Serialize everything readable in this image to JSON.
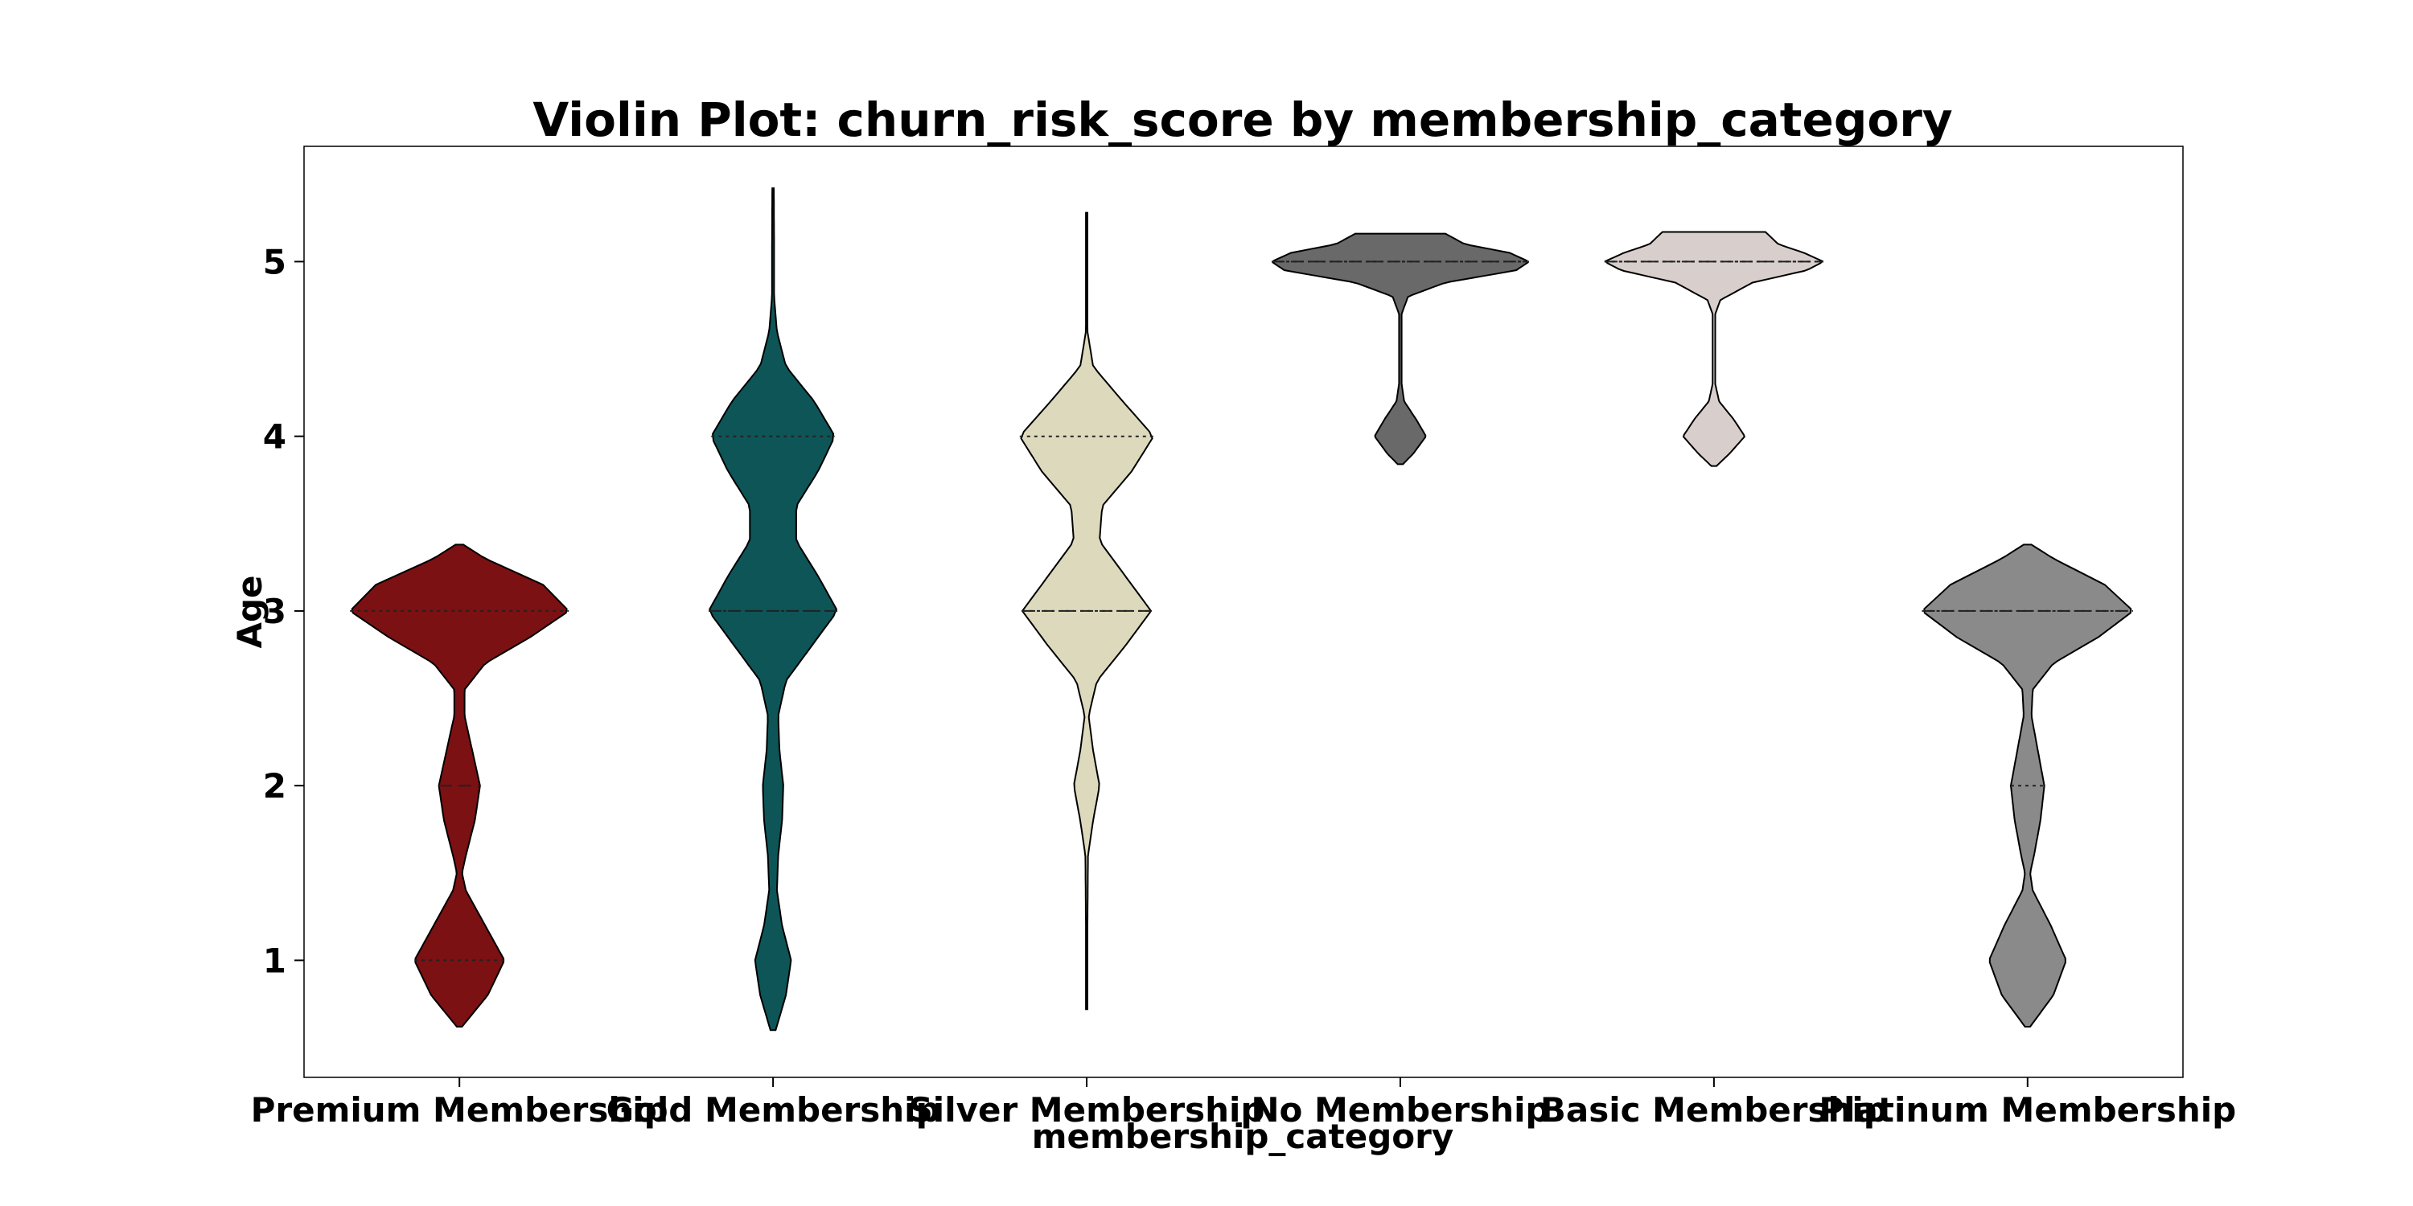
{
  "chart_data": {
    "type": "violin",
    "title": "Violin Plot: churn_risk_score by membership_category",
    "xlabel": "membership_category",
    "ylabel": "Age",
    "ylim": [
      0.33,
      5.66
    ],
    "yticks": [
      1,
      2,
      3,
      4,
      5
    ],
    "grid": false,
    "legend": "none",
    "inner": "quartile",
    "categories": [
      "Premium Membership",
      "Gold Membership",
      "Silver Membership",
      "No Membership",
      "Basic Membership",
      "Platinum Membership"
    ],
    "series": [
      {
        "category": "Premium Membership",
        "color": "#7b1113",
        "range": [
          0.62,
          3.38
        ],
        "quartiles": [
          1,
          2,
          3
        ],
        "density": [
          [
            0.62,
            0.02
          ],
          [
            0.8,
            0.22
          ],
          [
            1.0,
            0.35
          ],
          [
            1.2,
            0.2
          ],
          [
            1.4,
            0.05
          ],
          [
            1.5,
            0.02
          ],
          [
            1.6,
            0.05
          ],
          [
            1.8,
            0.12
          ],
          [
            2.0,
            0.16
          ],
          [
            2.2,
            0.1
          ],
          [
            2.4,
            0.04
          ],
          [
            2.55,
            0.04
          ],
          [
            2.7,
            0.2
          ],
          [
            2.85,
            0.55
          ],
          [
            3.0,
            0.85
          ],
          [
            3.15,
            0.65
          ],
          [
            3.3,
            0.2
          ],
          [
            3.38,
            0.03
          ]
        ]
      },
      {
        "category": "Gold Membership",
        "color": "#0e5558",
        "range": [
          0.6,
          5.42
        ],
        "quartiles": [
          3,
          3,
          4
        ],
        "density": [
          [
            0.6,
            0.02
          ],
          [
            0.8,
            0.1
          ],
          [
            1.0,
            0.14
          ],
          [
            1.2,
            0.07
          ],
          [
            1.4,
            0.03
          ],
          [
            1.6,
            0.04
          ],
          [
            1.8,
            0.07
          ],
          [
            2.0,
            0.08
          ],
          [
            2.2,
            0.05
          ],
          [
            2.4,
            0.04
          ],
          [
            2.6,
            0.1
          ],
          [
            2.8,
            0.3
          ],
          [
            3.0,
            0.5
          ],
          [
            3.2,
            0.35
          ],
          [
            3.4,
            0.18
          ],
          [
            3.6,
            0.18
          ],
          [
            3.8,
            0.35
          ],
          [
            4.0,
            0.48
          ],
          [
            4.2,
            0.32
          ],
          [
            4.4,
            0.1
          ],
          [
            4.6,
            0.03
          ],
          [
            4.8,
            0.008
          ],
          [
            5.1,
            0.008
          ],
          [
            5.42,
            0.006
          ]
        ]
      },
      {
        "category": "Silver Membership",
        "color": "#ddd9bc",
        "range": [
          0.72,
          5.28
        ],
        "quartiles": [
          3,
          3,
          4
        ],
        "density": [
          [
            0.72,
            0.006
          ],
          [
            1.2,
            0.006
          ],
          [
            1.6,
            0.01
          ],
          [
            1.8,
            0.05
          ],
          [
            2.0,
            0.1
          ],
          [
            2.2,
            0.05
          ],
          [
            2.4,
            0.015
          ],
          [
            2.6,
            0.08
          ],
          [
            2.8,
            0.3
          ],
          [
            3.0,
            0.5
          ],
          [
            3.2,
            0.3
          ],
          [
            3.4,
            0.1
          ],
          [
            3.6,
            0.12
          ],
          [
            3.8,
            0.35
          ],
          [
            4.0,
            0.52
          ],
          [
            4.2,
            0.28
          ],
          [
            4.4,
            0.05
          ],
          [
            4.6,
            0.006
          ],
          [
            5.28,
            0.006
          ]
        ]
      },
      {
        "category": "No Membership",
        "color": "#696969",
        "range": [
          3.84,
          5.16
        ],
        "quartiles": [
          5,
          5,
          5
        ],
        "density": [
          [
            3.84,
            0.02
          ],
          [
            3.9,
            0.1
          ],
          [
            4.0,
            0.2
          ],
          [
            4.1,
            0.12
          ],
          [
            4.2,
            0.03
          ],
          [
            4.3,
            0.01
          ],
          [
            4.7,
            0.01
          ],
          [
            4.8,
            0.06
          ],
          [
            4.88,
            0.35
          ],
          [
            4.95,
            0.9
          ],
          [
            5.0,
            1.0
          ],
          [
            5.05,
            0.85
          ],
          [
            5.1,
            0.5
          ],
          [
            5.16,
            0.35
          ]
        ]
      },
      {
        "category": "Basic Membership",
        "color": "#d8cfcd",
        "range": [
          3.83,
          5.17
        ],
        "quartiles": [
          5,
          5,
          5
        ],
        "density": [
          [
            3.83,
            0.02
          ],
          [
            3.9,
            0.12
          ],
          [
            4.0,
            0.24
          ],
          [
            4.1,
            0.15
          ],
          [
            4.2,
            0.04
          ],
          [
            4.3,
            0.01
          ],
          [
            4.7,
            0.01
          ],
          [
            4.78,
            0.05
          ],
          [
            4.88,
            0.3
          ],
          [
            4.95,
            0.72
          ],
          [
            5.0,
            0.85
          ],
          [
            5.05,
            0.7
          ],
          [
            5.1,
            0.5
          ],
          [
            5.17,
            0.4
          ]
        ]
      },
      {
        "category": "Platinum Membership",
        "color": "#8a8a8a",
        "range": [
          0.62,
          3.38
        ],
        "quartiles": [
          2,
          3,
          3
        ],
        "density": [
          [
            0.62,
            0.02
          ],
          [
            0.8,
            0.2
          ],
          [
            1.0,
            0.3
          ],
          [
            1.2,
            0.18
          ],
          [
            1.4,
            0.04
          ],
          [
            1.5,
            0.02
          ],
          [
            1.6,
            0.05
          ],
          [
            1.8,
            0.1
          ],
          [
            2.0,
            0.13
          ],
          [
            2.2,
            0.08
          ],
          [
            2.4,
            0.03
          ],
          [
            2.55,
            0.04
          ],
          [
            2.7,
            0.2
          ],
          [
            2.85,
            0.55
          ],
          [
            3.0,
            0.82
          ],
          [
            3.15,
            0.6
          ],
          [
            3.3,
            0.2
          ],
          [
            3.38,
            0.03
          ]
        ]
      }
    ]
  }
}
